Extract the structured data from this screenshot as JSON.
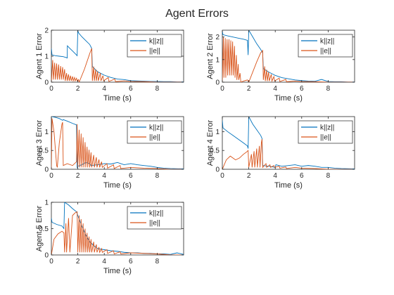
{
  "chart_data": {
    "suptitle": "Agent Errors",
    "series_colors": {
      "k||z||": "#0072BD",
      "||e||": "#D95319"
    },
    "subplots": [
      {
        "type": "line",
        "title": "",
        "xlabel": "Time (s)",
        "ylabel": "Agent 1 Error",
        "xlim": [
          0,
          10
        ],
        "ylim": [
          0,
          2
        ],
        "xticks": [
          "0",
          "2",
          "4",
          "6",
          "8"
        ],
        "yticks": [
          "0",
          "1",
          "2"
        ],
        "legend": [
          "k||z||",
          "||e||"
        ],
        "legend_position": "top-right",
        "series": [
          {
            "name": "k||z||",
            "x": [
              0,
              0.05,
              0.3,
              0.6,
              0.9,
              1.1,
              1.2,
              1.21,
              1.4,
              1.6,
              1.8,
              1.95,
              2.0,
              2.05,
              2.3,
              2.6,
              2.9,
              3.05,
              3.1,
              3.5,
              4.0,
              4.5,
              5.0,
              5.5,
              6.0,
              6.5,
              7.0,
              7.5,
              8.0,
              8.5,
              9.0,
              9.5,
              10
            ],
            "y": [
              1.3,
              1.05,
              1.02,
              1.0,
              0.98,
              0.95,
              0.93,
              1.4,
              1.3,
              1.2,
              1.1,
              1.02,
              2.0,
              1.9,
              1.75,
              1.6,
              1.45,
              1.3,
              0.6,
              0.4,
              0.27,
              0.18,
              0.12,
              0.1,
              0.06,
              0.05,
              0.04,
              0.03,
              0.03,
              0.02,
              0.02,
              0.01,
              0.01
            ]
          },
          {
            "name": "||e||",
            "x": [
              0,
              0.1,
              0.15,
              0.25,
              0.3,
              0.4,
              0.45,
              0.55,
              0.6,
              0.7,
              0.75,
              0.85,
              0.9,
              1.0,
              1.05,
              1.15,
              1.2,
              1.3,
              1.35,
              1.45,
              1.5,
              1.6,
              1.65,
              1.75,
              1.8,
              1.9,
              1.95,
              2.05,
              2.1,
              2.5,
              2.9,
              3.05,
              3.1,
              3.2,
              3.25,
              3.35,
              3.4,
              3.5,
              3.55,
              3.7,
              3.75,
              3.9,
              3.95,
              4.3,
              4.35,
              4.8,
              4.85,
              5.5,
              6.0,
              7.0,
              8.0,
              9.0,
              10
            ],
            "y": [
              0,
              0.85,
              0.1,
              0.75,
              0.1,
              0.72,
              0.1,
              0.68,
              0.1,
              0.62,
              0.1,
              0.58,
              0.1,
              0.5,
              0.05,
              0.35,
              0.05,
              0.3,
              0.05,
              0.25,
              0.05,
              0.22,
              0.05,
              0.18,
              0.05,
              0.15,
              0.05,
              0.1,
              0.0,
              0.5,
              1.1,
              1.3,
              0.05,
              0.6,
              0.05,
              0.5,
              0.05,
              0.42,
              0.05,
              0.35,
              0.05,
              0.25,
              0.05,
              0.18,
              0.03,
              0.12,
              0.02,
              0.05,
              0.03,
              0.02,
              0.0,
              0.0,
              0.0
            ]
          }
        ]
      },
      {
        "type": "line",
        "title": "",
        "xlabel": "Time (s)",
        "ylabel": "Agent 2 Error",
        "xlim": [
          0,
          10
        ],
        "ylim": [
          0,
          2.3
        ],
        "xticks": [
          "0",
          "2",
          "4",
          "6",
          "8"
        ],
        "yticks": [
          "0",
          "1",
          "2"
        ],
        "legend": [
          "k||z||",
          "||e||"
        ],
        "legend_position": "top-right",
        "series": [
          {
            "name": "k||z||",
            "x": [
              0,
              0.05,
              0.4,
              0.8,
              1.2,
              1.6,
              1.9,
              1.95,
              2.0,
              2.3,
              2.6,
              2.9,
              3.05,
              3.1,
              3.5,
              4.0,
              4.5,
              5.0,
              5.5,
              6.0,
              6.5,
              7.0,
              7.5,
              8.0,
              8.5,
              9.0,
              9.5,
              10
            ],
            "y": [
              2.25,
              2.1,
              2.05,
              2.0,
              1.95,
              1.9,
              1.85,
              1.2,
              2.3,
              2.0,
              1.7,
              1.45,
              1.3,
              0.6,
              0.45,
              0.3,
              0.2,
              0.15,
              0.1,
              0.07,
              0.05,
              0.04,
              0.12,
              0.03,
              0.02,
              0.02,
              0.01,
              0.01
            ]
          },
          {
            "name": "||e||",
            "x": [
              0,
              0.08,
              0.12,
              0.22,
              0.26,
              0.36,
              0.4,
              0.5,
              0.54,
              0.64,
              0.68,
              0.78,
              0.82,
              0.92,
              0.96,
              1.06,
              1.1,
              1.2,
              1.24,
              1.34,
              1.4,
              1.6,
              1.9,
              2.0,
              2.2,
              2.6,
              2.9,
              3.05,
              3.1,
              3.2,
              3.25,
              3.35,
              3.4,
              3.5,
              3.55,
              3.7,
              3.75,
              3.9,
              3.95,
              4.3,
              4.35,
              4.8,
              4.85,
              5.5,
              6.0,
              7.0,
              8.0,
              9.0,
              10
            ],
            "y": [
              0,
              2.0,
              0.2,
              1.95,
              0.2,
              1.9,
              0.3,
              1.9,
              0.3,
              1.85,
              0.3,
              1.8,
              0.3,
              1.6,
              0.2,
              1.2,
              0.1,
              0.8,
              0.1,
              0.4,
              0.0,
              0.05,
              0.1,
              0.0,
              0.3,
              0.9,
              1.3,
              1.4,
              0.1,
              0.7,
              0.05,
              0.55,
              0.05,
              0.45,
              0.05,
              0.35,
              0.05,
              0.25,
              0.05,
              0.18,
              0.03,
              0.12,
              0.02,
              0.05,
              0.03,
              0.02,
              0.0,
              0.0,
              0.0
            ]
          }
        ]
      },
      {
        "type": "line",
        "title": "",
        "xlabel": "Time (s)",
        "ylabel": "Agent 3 Error",
        "xlim": [
          0,
          10
        ],
        "ylim": [
          0,
          1.4
        ],
        "xticks": [
          "0",
          "2",
          "4",
          "6",
          "8"
        ],
        "yticks": [
          "0",
          "0.5",
          "1"
        ],
        "legend": [
          "k||z||",
          "||e||"
        ],
        "legend_position": "top-right",
        "series": [
          {
            "name": "k||z||",
            "x": [
              0,
              0.05,
              0.3,
              0.6,
              0.85,
              0.9,
              1.2,
              1.6,
              1.9,
              1.95,
              2.0,
              2.3,
              2.6,
              2.9,
              3.0,
              3.5,
              4.0,
              4.5,
              5.0,
              5.5,
              6.0,
              6.5,
              7.0,
              7.5,
              8.0,
              8.5,
              9.0,
              10
            ],
            "y": [
              1.4,
              1.4,
              1.38,
              1.35,
              1.3,
              1.32,
              1.28,
              1.22,
              1.18,
              0.05,
              0.08,
              0.12,
              0.18,
              0.15,
              0.1,
              0.12,
              0.15,
              0.14,
              0.18,
              0.12,
              0.15,
              0.12,
              0.1,
              0.08,
              0.05,
              0.03,
              0.02,
              0.01
            ]
          },
          {
            "name": "||e||",
            "x": [
              0,
              0.05,
              0.2,
              0.4,
              0.45,
              0.6,
              0.8,
              0.85,
              0.9,
              1.2,
              1.6,
              1.9,
              1.95,
              2.0,
              2.1,
              2.15,
              2.25,
              2.3,
              2.4,
              2.45,
              2.55,
              2.6,
              2.7,
              2.75,
              2.85,
              2.9,
              3.0,
              3.05,
              3.2,
              3.25,
              3.4,
              3.45,
              3.6,
              3.65,
              3.8,
              3.85,
              4.2,
              4.25,
              4.7,
              4.75,
              5.2,
              5.25,
              6.0,
              7.0,
              8.0,
              9.0,
              10
            ],
            "y": [
              0,
              1.35,
              1.0,
              0.1,
              0.05,
              0.7,
              1.2,
              1.25,
              0.1,
              0.15,
              0.1,
              0.2,
              1.2,
              0.05,
              1.05,
              0.05,
              0.95,
              0.05,
              0.85,
              0.05,
              0.72,
              0.05,
              0.6,
              0.05,
              0.52,
              0.05,
              0.45,
              0.05,
              0.38,
              0.05,
              0.32,
              0.05,
              0.26,
              0.05,
              0.2,
              0.05,
              0.15,
              0.03,
              0.12,
              0.02,
              0.1,
              0.02,
              0.05,
              0.03,
              0.02,
              0.0,
              0.0
            ]
          }
        ]
      },
      {
        "type": "line",
        "title": "",
        "xlabel": "Time (s)",
        "ylabel": "Agent 4 Error",
        "xlim": [
          0,
          10
        ],
        "ylim": [
          0,
          1.4
        ],
        "xticks": [
          "0",
          "2",
          "4",
          "6",
          "8"
        ],
        "yticks": [
          "0",
          "0.5",
          "1"
        ],
        "legend": [
          "k||z||",
          "||e||"
        ],
        "legend_position": "top-right",
        "series": [
          {
            "name": "k||z||",
            "x": [
              0,
              0.05,
              0.4,
              0.8,
              1.2,
              1.6,
              1.9,
              1.95,
              2.0,
              2.3,
              2.6,
              2.9,
              3.0,
              3.05,
              3.5,
              4.0,
              4.05,
              4.5,
              5.0,
              5.5,
              6.0,
              6.5,
              7.0,
              7.5,
              8.0,
              8.5,
              9.0,
              10
            ],
            "y": [
              1.3,
              1.1,
              1.0,
              0.9,
              0.8,
              0.7,
              0.62,
              0.55,
              1.4,
              1.2,
              1.05,
              0.9,
              0.82,
              0.1,
              0.08,
              0.05,
              0.12,
              0.08,
              0.1,
              0.12,
              0.08,
              0.1,
              0.08,
              0.05,
              0.05,
              0.03,
              0.02,
              0.01
            ]
          },
          {
            "name": "||e||",
            "x": [
              0,
              0.3,
              0.6,
              1.0,
              1.3,
              1.6,
              1.8,
              1.95,
              2.0,
              2.2,
              2.25,
              2.4,
              2.45,
              2.6,
              2.65,
              2.8,
              2.85,
              2.95,
              3.0,
              3.05,
              3.3,
              3.35,
              3.6,
              3.65,
              3.9,
              3.95,
              4.3,
              4.35,
              4.8,
              4.85,
              5.5,
              6.0,
              7.0,
              8.0,
              9.0,
              10
            ],
            "y": [
              0,
              0.25,
              0.35,
              0.25,
              0.3,
              0.4,
              0.45,
              0.5,
              0.05,
              0.4,
              0.05,
              0.48,
              0.05,
              0.55,
              0.05,
              0.62,
              0.05,
              0.7,
              0.8,
              0.05,
              0.15,
              0.05,
              0.12,
              0.05,
              0.1,
              0.05,
              0.08,
              0.03,
              0.06,
              0.02,
              0.05,
              0.03,
              0.02,
              0.0,
              0.0,
              0.0
            ]
          }
        ]
      },
      {
        "type": "line",
        "title": "",
        "xlabel": "Time (s)",
        "ylabel": "Agent 5 Error",
        "xlim": [
          0,
          10
        ],
        "ylim": [
          0,
          1
        ],
        "xticks": [
          "0",
          "2",
          "4",
          "6",
          "8"
        ],
        "yticks": [
          "0",
          "0.5",
          "1"
        ],
        "legend": [
          "k||z||",
          "||e||"
        ],
        "legend_position": "top-right",
        "series": [
          {
            "name": "k||z||",
            "x": [
              0,
              0.05,
              0.4,
              0.8,
              0.95,
              1.0,
              1.3,
              1.6,
              1.9,
              2.0,
              2.3,
              2.6,
              2.9,
              3.2,
              3.5,
              4.0,
              4.5,
              5.0,
              5.5,
              6.0,
              6.5,
              7.0,
              7.5,
              8.0,
              8.5,
              9.0,
              9.5,
              10
            ],
            "y": [
              0.7,
              0.62,
              0.58,
              0.55,
              0.5,
              1.0,
              0.95,
              0.88,
              0.82,
              0.75,
              0.55,
              0.38,
              0.25,
              0.18,
              0.12,
              0.1,
              0.08,
              0.07,
              0.05,
              0.04,
              0.04,
              0.03,
              0.03,
              0.02,
              0.02,
              0.01,
              0.04,
              0.01
            ]
          },
          {
            "name": "||e||",
            "x": [
              0,
              0.2,
              0.5,
              0.8,
              0.95,
              1.0,
              1.1,
              1.15,
              1.3,
              1.4,
              1.6,
              1.8,
              1.95,
              2.0,
              2.1,
              2.15,
              2.25,
              2.3,
              2.4,
              2.45,
              2.55,
              2.6,
              2.7,
              2.75,
              2.85,
              2.9,
              3.0,
              3.05,
              3.2,
              3.25,
              3.4,
              3.45,
              3.6,
              3.65,
              3.8,
              3.85,
              4.2,
              4.25,
              4.7,
              4.75,
              5.2,
              5.25,
              6.0,
              7.0,
              8.0,
              9.0,
              10
            ],
            "y": [
              0,
              0.3,
              0.4,
              0.45,
              0.42,
              0.05,
              0.6,
              0.05,
              0.7,
              0.05,
              0.75,
              0.8,
              0.82,
              0.05,
              0.75,
              0.05,
              0.68,
              0.05,
              0.6,
              0.05,
              0.5,
              0.05,
              0.42,
              0.05,
              0.35,
              0.05,
              0.3,
              0.05,
              0.25,
              0.05,
              0.2,
              0.05,
              0.15,
              0.05,
              0.12,
              0.05,
              0.1,
              0.03,
              0.08,
              0.02,
              0.06,
              0.02,
              0.04,
              0.03,
              0.02,
              0.0,
              0.0
            ]
          }
        ]
      }
    ]
  }
}
